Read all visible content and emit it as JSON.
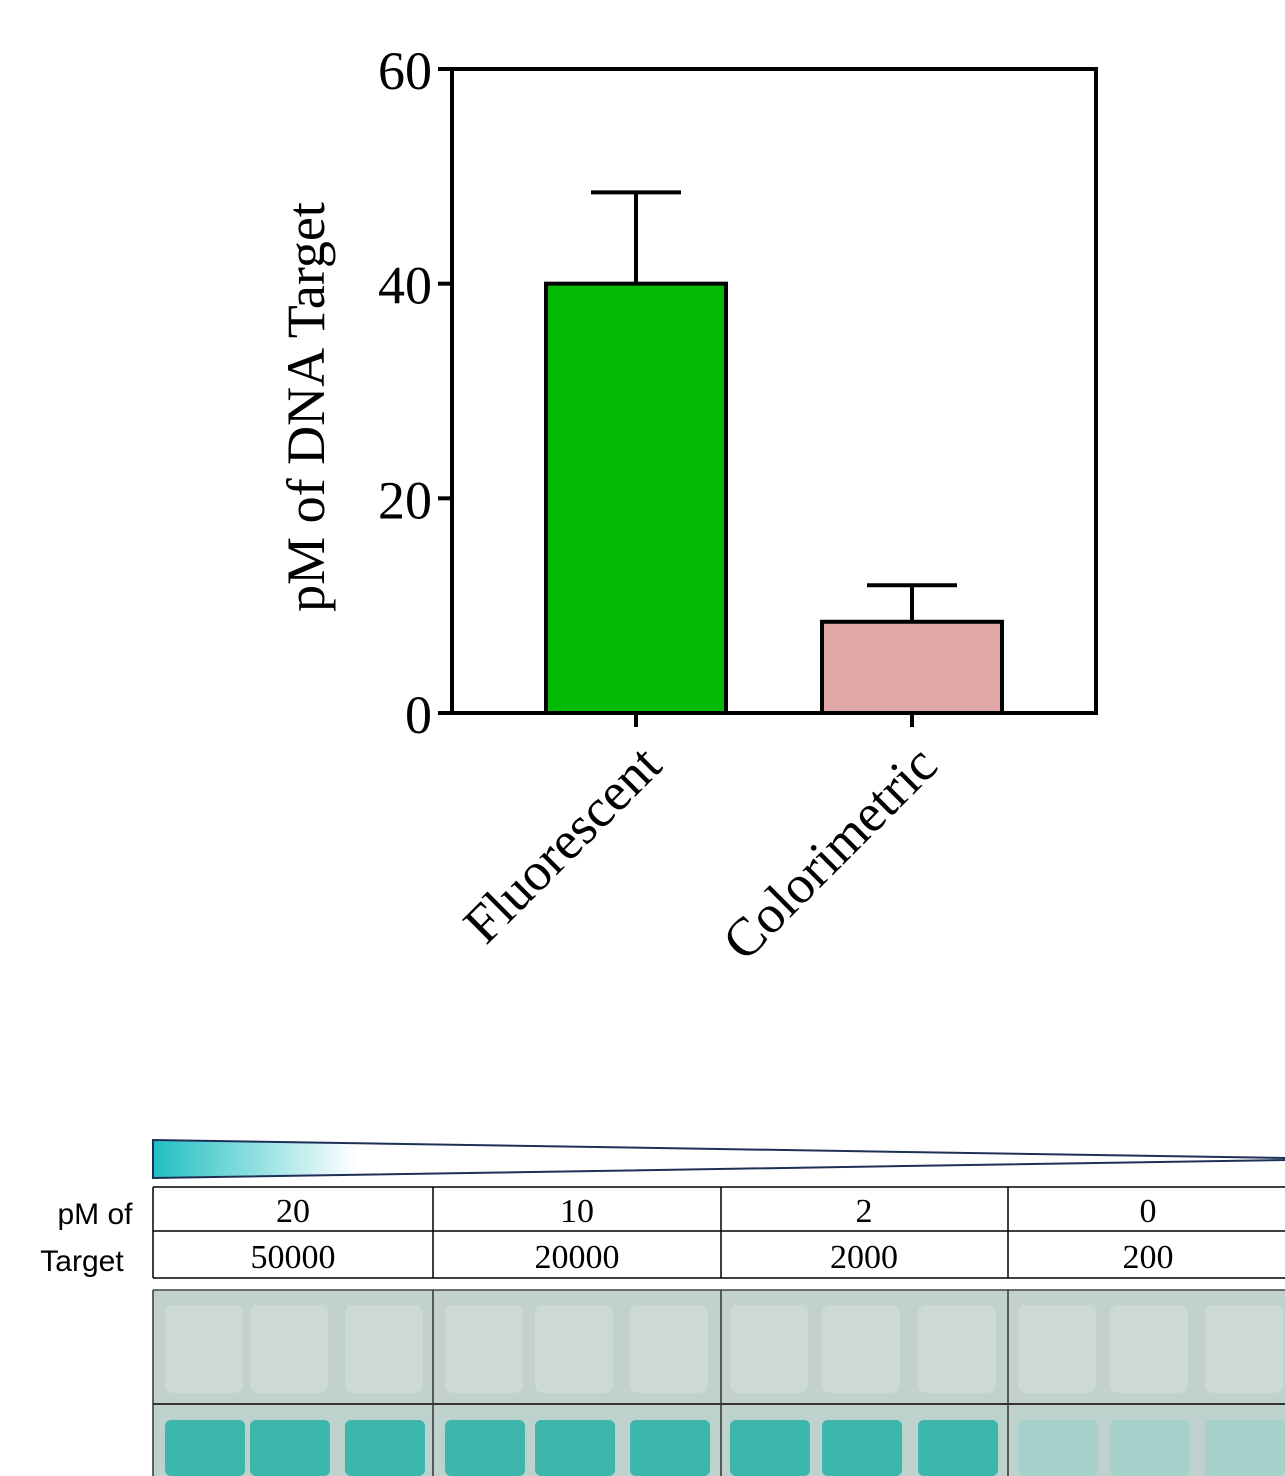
{
  "chart_data": {
    "type": "bar",
    "title": "",
    "xlabel": "",
    "ylabel": "pM of DNA Target",
    "ylim": [
      0,
      60
    ],
    "yticks": [
      0,
      20,
      40,
      60
    ],
    "categories": [
      "Fluorescent",
      "Colorimetric"
    ],
    "values": [
      40,
      8.5
    ],
    "errors": [
      8.5,
      3.4
    ],
    "colors": [
      "#02bb02",
      "#e0a7a7"
    ],
    "grid": false,
    "legend": "none"
  },
  "gradient_colors": [
    "#20bfc2",
    "#ffffff"
  ],
  "table": {
    "row_label_line1": "pM of",
    "row_label_line2": "Target",
    "row1": [
      "20",
      "10",
      "2",
      "0",
      ""
    ],
    "row2": [
      "50000",
      "20000",
      "2000",
      "200",
      ""
    ]
  },
  "strip_colors": {
    "top_background": "#c2d1cc",
    "bottom_background": "#bdd2cd",
    "spot_strong": "#32b3a8",
    "spot_weak": "#9fcfc8"
  }
}
